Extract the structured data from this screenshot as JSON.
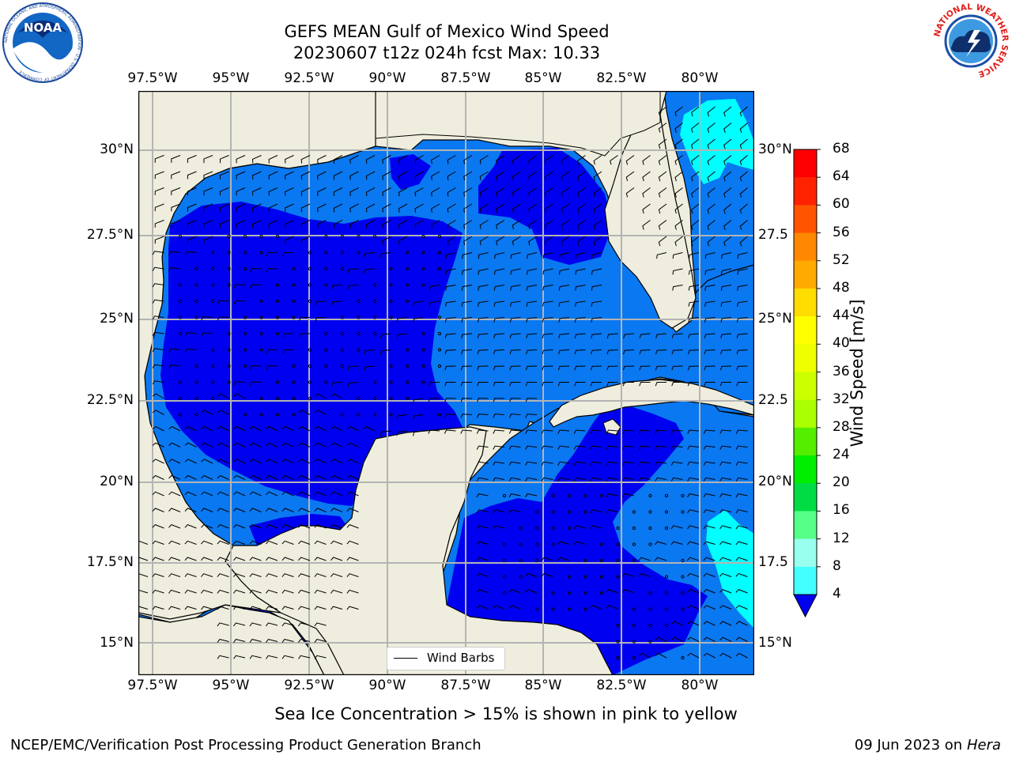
{
  "title": {
    "line1": "GEFS MEAN Gulf of Mexico Wind Speed",
    "line2": "20230607 t12z 024h fcst   Max: 10.33"
  },
  "logos": {
    "left": {
      "text": "NOAA",
      "ring_text": "NATIONAL OCEANIC AND ATMOSPHERIC ADMINISTRATION · U.S. DEPARTMENT OF COMMERCE"
    },
    "right": {
      "ring_text": "NATIONAL WEATHER SERVICE"
    }
  },
  "map": {
    "lon_labels": [
      "97.5°W",
      "95°W",
      "92.5°W",
      "90°W",
      "87.5°W",
      "85°W",
      "82.5°W",
      "80°W"
    ],
    "lat_labels_left": [
      "30°N",
      "27.5°N",
      "25°N",
      "22.5°N",
      "20°N",
      "17.5°N",
      "15°N"
    ],
    "lat_labels_right": [
      "30°N",
      "27.5",
      "25°N",
      "22.5",
      "20°N",
      "17.5",
      "15°N"
    ],
    "colors": {
      "land": "#efeddd",
      "speed_0_4": "#0000f0",
      "speed_4_8": "#0a78f0",
      "speed_8_12": "#00ffff",
      "grid": "#b4b4b4"
    }
  },
  "legend": {
    "label": "Wind Barbs"
  },
  "colorbar": {
    "label": "Wind Speed [m/s]",
    "ticks": [
      "68",
      "64",
      "60",
      "56",
      "52",
      "48",
      "44",
      "40",
      "36",
      "32",
      "28",
      "24",
      "20",
      "16",
      "12",
      "8",
      "4"
    ],
    "colors": [
      "#ff0000",
      "#ff2200",
      "#ff5500",
      "#ff8800",
      "#ffaa00",
      "#ffdd00",
      "#ffff00",
      "#eeff00",
      "#ccff00",
      "#aaff00",
      "#55ee00",
      "#00ee00",
      "#00dd44",
      "#55ff88",
      "#99ffee",
      "#44ffff",
      "#00ffff",
      "#0a78f0",
      "#0000f0"
    ]
  },
  "caption": "Sea Ice Concentration > 15% is shown in pink to yellow",
  "footer": {
    "left": "NCEP/EMC/Verification Post Processing Product Generation Branch",
    "right_date": "09 Jun 2023 on",
    "right_machine": "Hera"
  }
}
